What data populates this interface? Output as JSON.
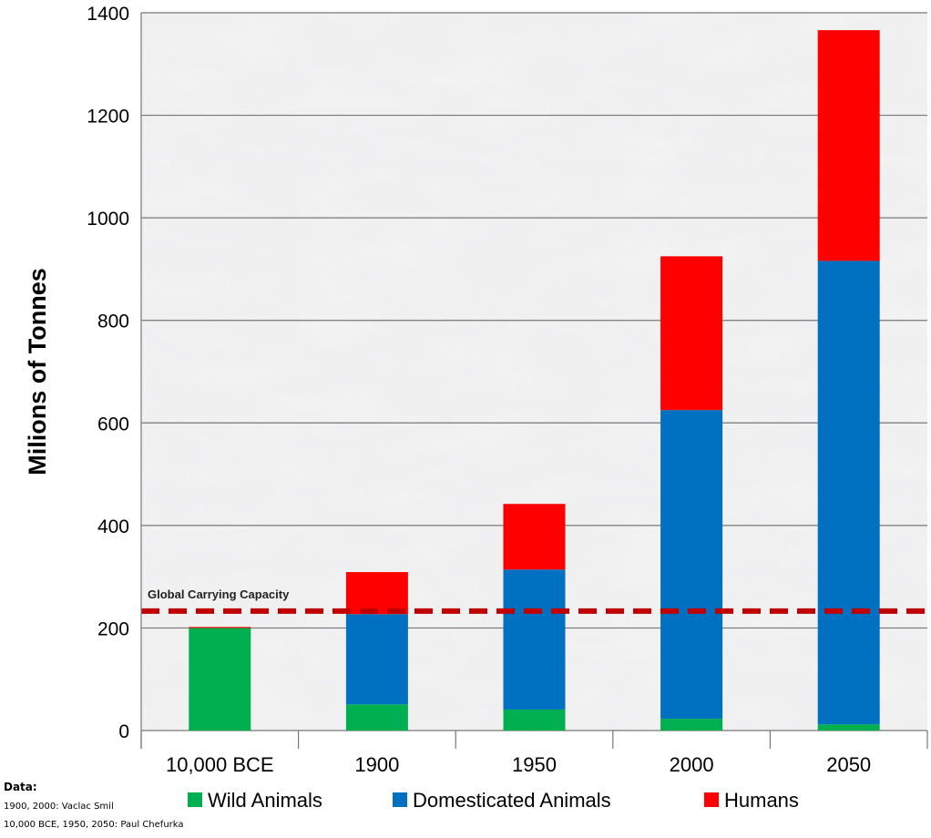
{
  "chart_data": {
    "type": "bar",
    "stacked": true,
    "ylabel": "Milions of Tonnes",
    "ylim": [
      0,
      1400
    ],
    "yticks": [
      0,
      200,
      400,
      600,
      800,
      1000,
      1200,
      1400
    ],
    "grid": true,
    "legend_placement": "bottom",
    "categories": [
      "10,000 BCE",
      "1900",
      "1950",
      "2000",
      "2050"
    ],
    "series": [
      {
        "name": "Wild Animals",
        "color": "#00b050",
        "values": [
          200,
          51,
          41,
          23,
          12
        ]
      },
      {
        "name": "Domesticated Animals",
        "color": "#0070c0",
        "values": [
          0,
          176,
          273,
          602,
          904
        ]
      },
      {
        "name": "Humans",
        "color": "#ff0000",
        "values": [
          2,
          82,
          128,
          300,
          450
        ]
      }
    ],
    "reference_line": {
      "label": "Global Carrying Capacity",
      "value": 233,
      "color": "#c00000",
      "style": "dashed"
    }
  },
  "source_note": {
    "title": "Data:",
    "lines": [
      "1900, 2000: Vaclac Smil",
      "10,000 BCE, 1950, 2050: Paul Chefurka"
    ]
  }
}
